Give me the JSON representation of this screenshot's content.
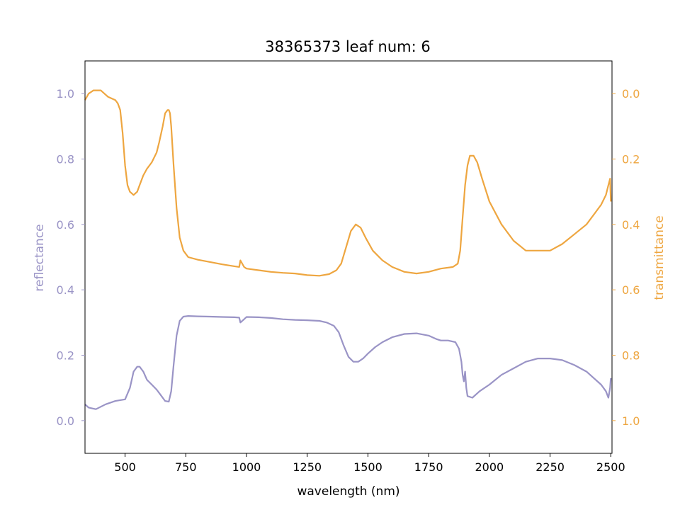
{
  "chart_data": {
    "type": "line",
    "title": "38365373 leaf num: 6",
    "xlabel": "wavelength (nm)",
    "ylabel_left": "reflectance",
    "ylabel_right": "transmittance",
    "xlim": [
      335,
      2505
    ],
    "ylim_left": [
      -0.1,
      1.1
    ],
    "ylim_right_inverted": [
      1.1,
      -0.1
    ],
    "x_ticks": [
      500,
      750,
      1000,
      1250,
      1500,
      1750,
      2000,
      2250,
      2500
    ],
    "y_ticks_left": [
      0.0,
      0.2,
      0.4,
      0.6,
      0.8,
      1.0
    ],
    "y_ticks_right": [
      0.0,
      0.2,
      0.4,
      0.6,
      0.8,
      1.0
    ],
    "grid": false,
    "colors": {
      "reflectance": "#9a94c6",
      "transmittance": "#eea640",
      "axis": "#000000"
    },
    "series": [
      {
        "name": "reflectance",
        "axis": "left",
        "x": [
          335,
          350,
          380,
          420,
          460,
          500,
          520,
          535,
          550,
          560,
          575,
          590,
          610,
          630,
          650,
          665,
          680,
          690,
          700,
          712,
          725,
          740,
          760,
          800,
          850,
          900,
          950,
          970,
          975,
          990,
          1000,
          1050,
          1100,
          1150,
          1200,
          1250,
          1300,
          1330,
          1360,
          1380,
          1400,
          1420,
          1440,
          1460,
          1480,
          1500,
          1530,
          1560,
          1600,
          1650,
          1700,
          1750,
          1780,
          1800,
          1830,
          1860,
          1875,
          1885,
          1890,
          1895,
          1900,
          1905,
          1910,
          1930,
          1960,
          2000,
          2050,
          2100,
          2150,
          2200,
          2250,
          2300,
          2350,
          2400,
          2430,
          2460,
          2480,
          2490,
          2497,
          2500
        ],
        "values": [
          0.05,
          0.04,
          0.035,
          0.05,
          0.06,
          0.065,
          0.1,
          0.15,
          0.165,
          0.165,
          0.15,
          0.125,
          0.11,
          0.095,
          0.075,
          0.06,
          0.058,
          0.09,
          0.17,
          0.26,
          0.305,
          0.318,
          0.32,
          0.319,
          0.318,
          0.317,
          0.316,
          0.315,
          0.3,
          0.31,
          0.317,
          0.316,
          0.314,
          0.31,
          0.308,
          0.307,
          0.305,
          0.3,
          0.29,
          0.27,
          0.23,
          0.195,
          0.18,
          0.18,
          0.19,
          0.205,
          0.225,
          0.24,
          0.255,
          0.265,
          0.267,
          0.26,
          0.25,
          0.245,
          0.245,
          0.24,
          0.22,
          0.18,
          0.14,
          0.12,
          0.15,
          0.1,
          0.075,
          0.07,
          0.09,
          0.11,
          0.14,
          0.16,
          0.18,
          0.19,
          0.19,
          0.185,
          0.17,
          0.15,
          0.13,
          0.11,
          0.09,
          0.07,
          0.1,
          0.13
        ]
      },
      {
        "name": "transmittance",
        "axis": "right",
        "x": [
          335,
          350,
          370,
          400,
          430,
          460,
          470,
          480,
          490,
          500,
          510,
          520,
          535,
          550,
          560,
          575,
          590,
          610,
          630,
          640,
          655,
          665,
          675,
          680,
          685,
          690,
          700,
          712,
          725,
          740,
          760,
          800,
          850,
          900,
          950,
          970,
          975,
          990,
          1000,
          1050,
          1100,
          1150,
          1200,
          1250,
          1300,
          1340,
          1370,
          1390,
          1410,
          1430,
          1450,
          1470,
          1490,
          1520,
          1560,
          1600,
          1650,
          1700,
          1750,
          1800,
          1850,
          1870,
          1880,
          1890,
          1900,
          1910,
          1920,
          1935,
          1950,
          1970,
          2000,
          2050,
          2100,
          2150,
          2200,
          2250,
          2300,
          2350,
          2400,
          2430,
          2460,
          2480,
          2490,
          2497,
          2500
        ],
        "values": [
          0.02,
          0.0,
          -0.01,
          -0.01,
          0.01,
          0.02,
          0.03,
          0.05,
          0.12,
          0.22,
          0.28,
          0.3,
          0.31,
          0.3,
          0.28,
          0.25,
          0.23,
          0.21,
          0.18,
          0.15,
          0.1,
          0.06,
          0.05,
          0.05,
          0.06,
          0.1,
          0.22,
          0.35,
          0.44,
          0.48,
          0.5,
          0.508,
          0.515,
          0.522,
          0.528,
          0.53,
          0.51,
          0.53,
          0.535,
          0.54,
          0.545,
          0.548,
          0.55,
          0.555,
          0.557,
          0.552,
          0.54,
          0.52,
          0.47,
          0.42,
          0.4,
          0.41,
          0.44,
          0.48,
          0.51,
          0.53,
          0.545,
          0.55,
          0.545,
          0.535,
          0.53,
          0.52,
          0.48,
          0.38,
          0.28,
          0.22,
          0.19,
          0.19,
          0.21,
          0.26,
          0.33,
          0.4,
          0.45,
          0.48,
          0.48,
          0.48,
          0.46,
          0.43,
          0.4,
          0.37,
          0.34,
          0.31,
          0.28,
          0.26,
          0.33
        ]
      }
    ]
  }
}
